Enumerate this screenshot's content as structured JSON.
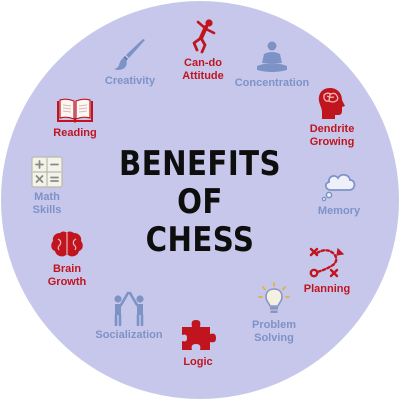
{
  "title": [
    "BENEFITS",
    "OF",
    "CHESS"
  ],
  "colors": {
    "background": "#c7c7ec",
    "title": "#0e0e0e",
    "accent_red": "#c0151f",
    "accent_blue": "#7d93c6"
  },
  "items": [
    {
      "label": [
        "Can-do",
        "Attitude"
      ],
      "icon": "person-cheering-icon",
      "color": "#c0151f"
    },
    {
      "label": [
        "Concentration"
      ],
      "icon": "meditating-person-icon",
      "color": "#7d93c6"
    },
    {
      "label": [
        "Dendrite",
        "Growing"
      ],
      "icon": "brain-head-icon",
      "color": "#c0151f"
    },
    {
      "label": [
        "Memory"
      ],
      "icon": "thought-cloud-icon",
      "color": "#7d93c6"
    },
    {
      "label": [
        "Planning"
      ],
      "icon": "strategy-diagram-icon",
      "color": "#c0151f"
    },
    {
      "label": [
        "Problem",
        "Solving"
      ],
      "icon": "light-bulb-icon",
      "color": "#7d93c6"
    },
    {
      "label": [
        "Logic"
      ],
      "icon": "puzzle-piece-icon",
      "color": "#c0151f"
    },
    {
      "label": [
        "Socialization"
      ],
      "icon": "high-five-people-icon",
      "color": "#7d93c6"
    },
    {
      "label": [
        "Brain",
        "Growth"
      ],
      "icon": "brain-icon",
      "color": "#c0151f"
    },
    {
      "label": [
        "Math",
        "Skills"
      ],
      "icon": "calculator-icon",
      "color": "#7d93c6"
    },
    {
      "label": [
        "Reading"
      ],
      "icon": "open-book-icon",
      "color": "#c0151f"
    },
    {
      "label": [
        "Creativity"
      ],
      "icon": "paint-brush-icon",
      "color": "#7d93c6"
    }
  ]
}
